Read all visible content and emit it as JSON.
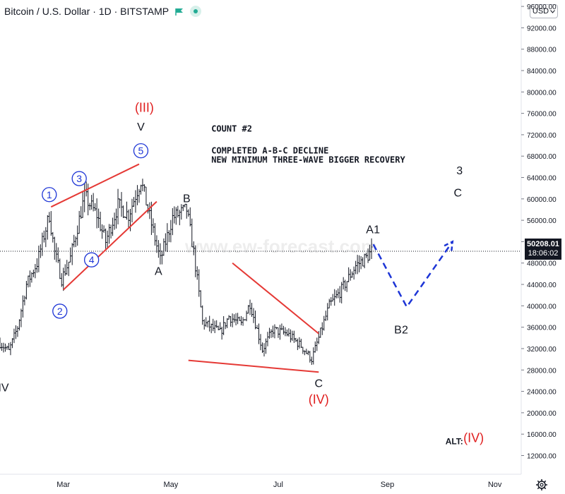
{
  "header": {
    "title": "Bitcoin / U.S. Dollar · 1D · BITSTAMP",
    "currency": "USD"
  },
  "price_tag": {
    "price": "50208.01",
    "countdown": "18:06:02"
  },
  "watermark": "www.ew-forecast.com",
  "colors": {
    "line_red": "#e53935",
    "elliott_blue": "#1d35d6",
    "wave_red": "#e01e1e",
    "candles": "#131722",
    "price_tag_bg": "#131722"
  },
  "icons": [
    "flag-icon",
    "status-dot-icon",
    "chevron-down-icon",
    "gear-icon"
  ],
  "chart_data": {
    "type": "candlestick",
    "title": "Bitcoin / U.S. Dollar",
    "x": {
      "tick_labels": [
        "Mar",
        "May",
        "Jul",
        "Sep",
        "Nov"
      ],
      "range": [
        "2021-01-24",
        "2021-11-16"
      ]
    },
    "y": {
      "tick_values": [
        12000,
        16000,
        20000,
        24000,
        28000,
        32000,
        36000,
        40000,
        44000,
        48000,
        52000,
        56000,
        60000,
        64000,
        68000,
        72000,
        76000,
        80000,
        84000,
        88000,
        92000,
        96000
      ],
      "range": [
        8500,
        97200
      ],
      "last_price": 50208.01
    },
    "price_path": [
      [
        "2021-01-24",
        33000
      ],
      [
        "2021-01-29",
        31500
      ],
      [
        "2021-02-03",
        36000
      ],
      [
        "2021-02-08",
        44000
      ],
      [
        "2021-02-14",
        48000
      ],
      [
        "2021-02-21",
        57000
      ],
      [
        "2021-02-24",
        50000
      ],
      [
        "2021-02-28",
        45000
      ],
      [
        "2021-03-05",
        49000
      ],
      [
        "2021-03-13",
        60500
      ],
      [
        "2021-03-20",
        57000
      ],
      [
        "2021-03-25",
        52000
      ],
      [
        "2021-04-01",
        58800
      ],
      [
        "2021-04-07",
        57000
      ],
      [
        "2021-04-14",
        63500
      ],
      [
        "2021-04-18",
        58000
      ],
      [
        "2021-04-25",
        48500
      ],
      [
        "2021-05-02",
        56500
      ],
      [
        "2021-05-10",
        58000
      ],
      [
        "2021-05-14",
        50000
      ],
      [
        "2021-05-19",
        37000
      ],
      [
        "2021-05-24",
        36000
      ],
      [
        "2021-05-29",
        35000
      ],
      [
        "2021-06-03",
        38000
      ],
      [
        "2021-06-10",
        36500
      ],
      [
        "2021-06-15",
        40500
      ],
      [
        "2021-06-22",
        31800
      ],
      [
        "2021-06-28",
        35500
      ],
      [
        "2021-07-06",
        34800
      ],
      [
        "2021-07-14",
        32500
      ],
      [
        "2021-07-20",
        30000
      ],
      [
        "2021-07-24",
        34000
      ],
      [
        "2021-07-30",
        40000
      ],
      [
        "2021-08-06",
        43000
      ],
      [
        "2021-08-14",
        47500
      ],
      [
        "2021-08-20",
        49000
      ],
      [
        "2021-08-23",
        50208
      ]
    ],
    "trendlines": [
      {
        "from": [
          "2021-02-22",
          58500
        ],
        "to": [
          "2021-04-13",
          66500
        ]
      },
      {
        "from": [
          "2021-03-01",
          43000
        ],
        "to": [
          "2021-04-23",
          59500
        ]
      },
      {
        "from": [
          "2021-06-05",
          48000
        ],
        "to": [
          "2021-07-24",
          34800
        ]
      },
      {
        "from": [
          "2021-05-11",
          29800
        ],
        "to": [
          "2021-07-24",
          27600
        ]
      }
    ],
    "projection": [
      [
        "2021-08-24",
        51500
      ],
      [
        "2021-09-12",
        39800
      ],
      [
        "2021-10-08",
        52000
      ]
    ],
    "labels": [
      {
        "text": "(III)",
        "at": [
          "2021-04-16",
          77200
        ],
        "style": "red"
      },
      {
        "text": "V",
        "at": [
          "2021-04-14",
          73600
        ],
        "style": "black"
      },
      {
        "text": "5",
        "at": [
          "2021-04-14",
          69000
        ],
        "style": "circle"
      },
      {
        "text": "1",
        "at": [
          "2021-02-21",
          60800
        ],
        "style": "circle"
      },
      {
        "text": "3",
        "at": [
          "2021-03-10",
          63800
        ],
        "style": "circle"
      },
      {
        "text": "4",
        "at": [
          "2021-03-17",
          48600
        ],
        "style": "circle"
      },
      {
        "text": "2",
        "at": [
          "2021-02-27",
          39000
        ],
        "style": "circle"
      },
      {
        "text": "B",
        "at": [
          "2021-05-10",
          60200
        ],
        "style": "black"
      },
      {
        "text": "A",
        "at": [
          "2021-04-24",
          46600
        ],
        "style": "black"
      },
      {
        "text": "IV",
        "at": [
          "2021-01-26",
          24800
        ],
        "style": "black"
      },
      {
        "text": "C",
        "at": [
          "2021-07-24",
          25600
        ],
        "style": "black"
      },
      {
        "text": "(IV)",
        "at": [
          "2021-07-24",
          22600
        ],
        "style": "red"
      },
      {
        "text": "A",
        "at": [
          "2021-08-22",
          54400
        ],
        "style": "black"
      },
      {
        "text": "1",
        "at": [
          "2021-08-26",
          54400
        ],
        "style": "black"
      },
      {
        "text": "B",
        "at": [
          "2021-09-07",
          35600
        ],
        "style": "black"
      },
      {
        "text": "2",
        "at": [
          "2021-09-11",
          35600
        ],
        "style": "black"
      },
      {
        "text": "3",
        "at": [
          "2021-10-12",
          65400
        ],
        "style": "black"
      },
      {
        "text": "C",
        "at": [
          "2021-10-11",
          61200
        ],
        "style": "black"
      },
      {
        "text": "ALT:",
        "at": [
          "2021-10-09",
          14800
        ],
        "style": "alt"
      },
      {
        "text": "(IV)",
        "at": [
          "2021-10-20",
          15400
        ],
        "style": "red"
      }
    ],
    "annotations": [
      {
        "text": "COUNT #2",
        "at": [
          "2021-05-24",
          73100
        ]
      },
      {
        "text": "COMPLETED A-B-C DECLINE",
        "at": [
          "2021-05-24",
          69000
        ]
      },
      {
        "text": "NEW MINIMUM THREE-WAVE BIGGER RECOVERY",
        "at": [
          "2021-05-24",
          67300
        ]
      }
    ],
    "grid": false
  }
}
